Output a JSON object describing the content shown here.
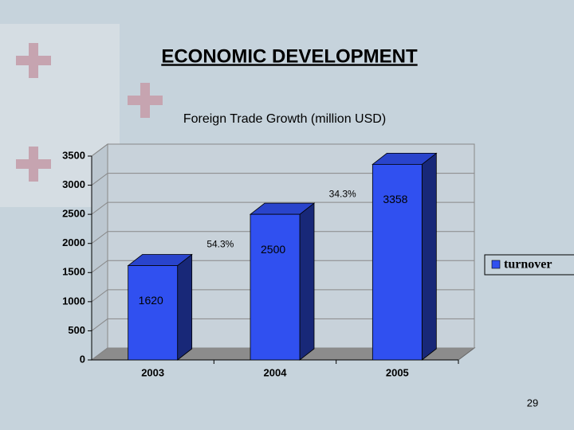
{
  "slide_title": "ECONOMIC DEVELOPMENT",
  "page_number": 29,
  "chart_data": {
    "type": "bar",
    "title": "Foreign Trade Growth (million USD)",
    "categories": [
      "2003",
      "2004",
      "2005"
    ],
    "series": [
      {
        "name": "turnover",
        "color": "#3050f0",
        "values": [
          1620,
          2500,
          3358
        ]
      }
    ],
    "annotations": [
      "54.3%",
      "34.3%"
    ],
    "ylim": [
      0,
      3500
    ],
    "yticks": [
      0,
      500,
      1000,
      1500,
      2000,
      2500,
      3000,
      3500
    ],
    "grid": true,
    "legend": "right"
  }
}
